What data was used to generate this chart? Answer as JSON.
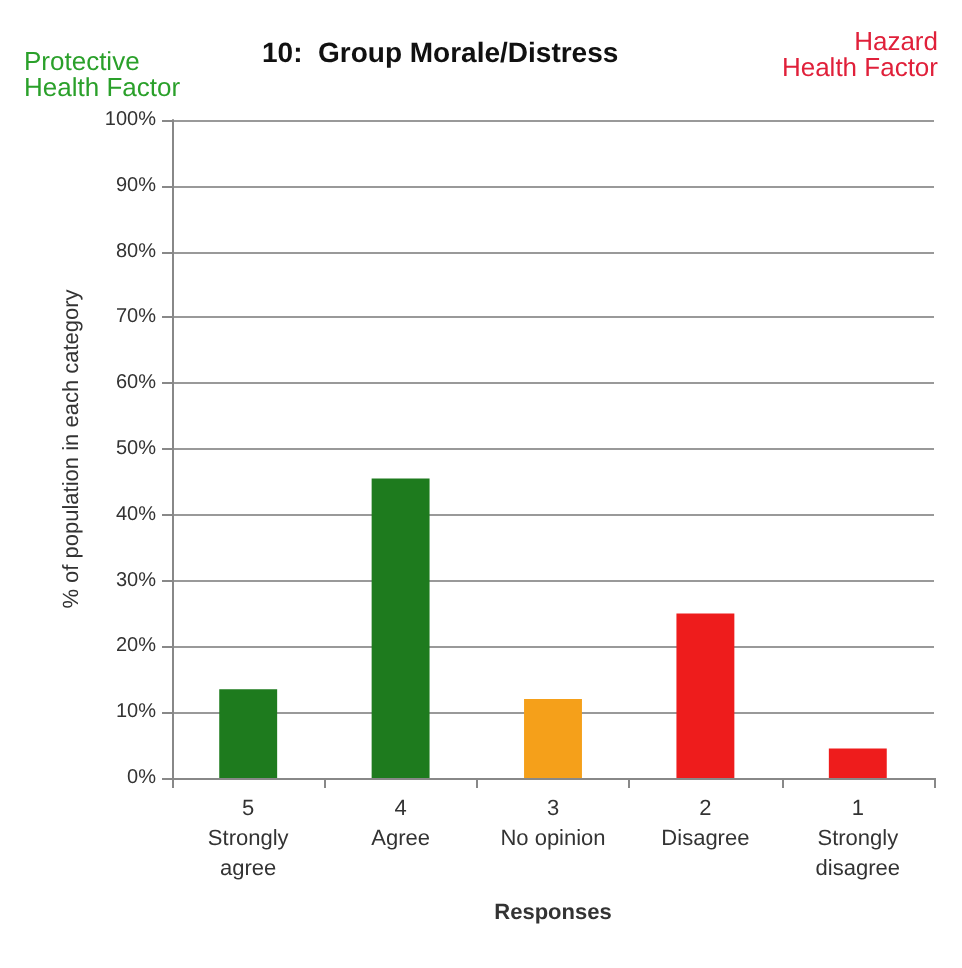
{
  "chart_data": {
    "type": "bar",
    "title": "10:  Group Morale/Distress",
    "xlabel": "Responses",
    "ylabel": "% of population in each category",
    "categories": [
      "5\nStrongly\nagree",
      "4\nAgree",
      "3\nNo opinion",
      "2\nDisagree",
      "1\nStrongly\ndisagree"
    ],
    "values": [
      13.5,
      45.5,
      12,
      25,
      4.5
    ],
    "colors": [
      "#1e7b1e",
      "#1e7b1e",
      "#f5a01a",
      "#ee1c1c",
      "#ee1c1c"
    ],
    "ylim": [
      0,
      100
    ],
    "yticks": [
      {
        "value": 0,
        "label": "0%"
      },
      {
        "value": 10,
        "label": "10%"
      },
      {
        "value": 20,
        "label": "20%"
      },
      {
        "value": 30,
        "label": "30%"
      },
      {
        "value": 40,
        "label": "40%"
      },
      {
        "value": 50,
        "label": "50%"
      },
      {
        "value": 60,
        "label": "60%"
      },
      {
        "value": 70,
        "label": "70%"
      },
      {
        "value": 80,
        "label": "80%"
      },
      {
        "value": 90,
        "label": "90%"
      },
      {
        "value": 100,
        "label": "100%"
      }
    ],
    "grid": "y",
    "annotations": [
      "Protective\nHealth Factor",
      "Hazard\nHealth Factor"
    ]
  }
}
